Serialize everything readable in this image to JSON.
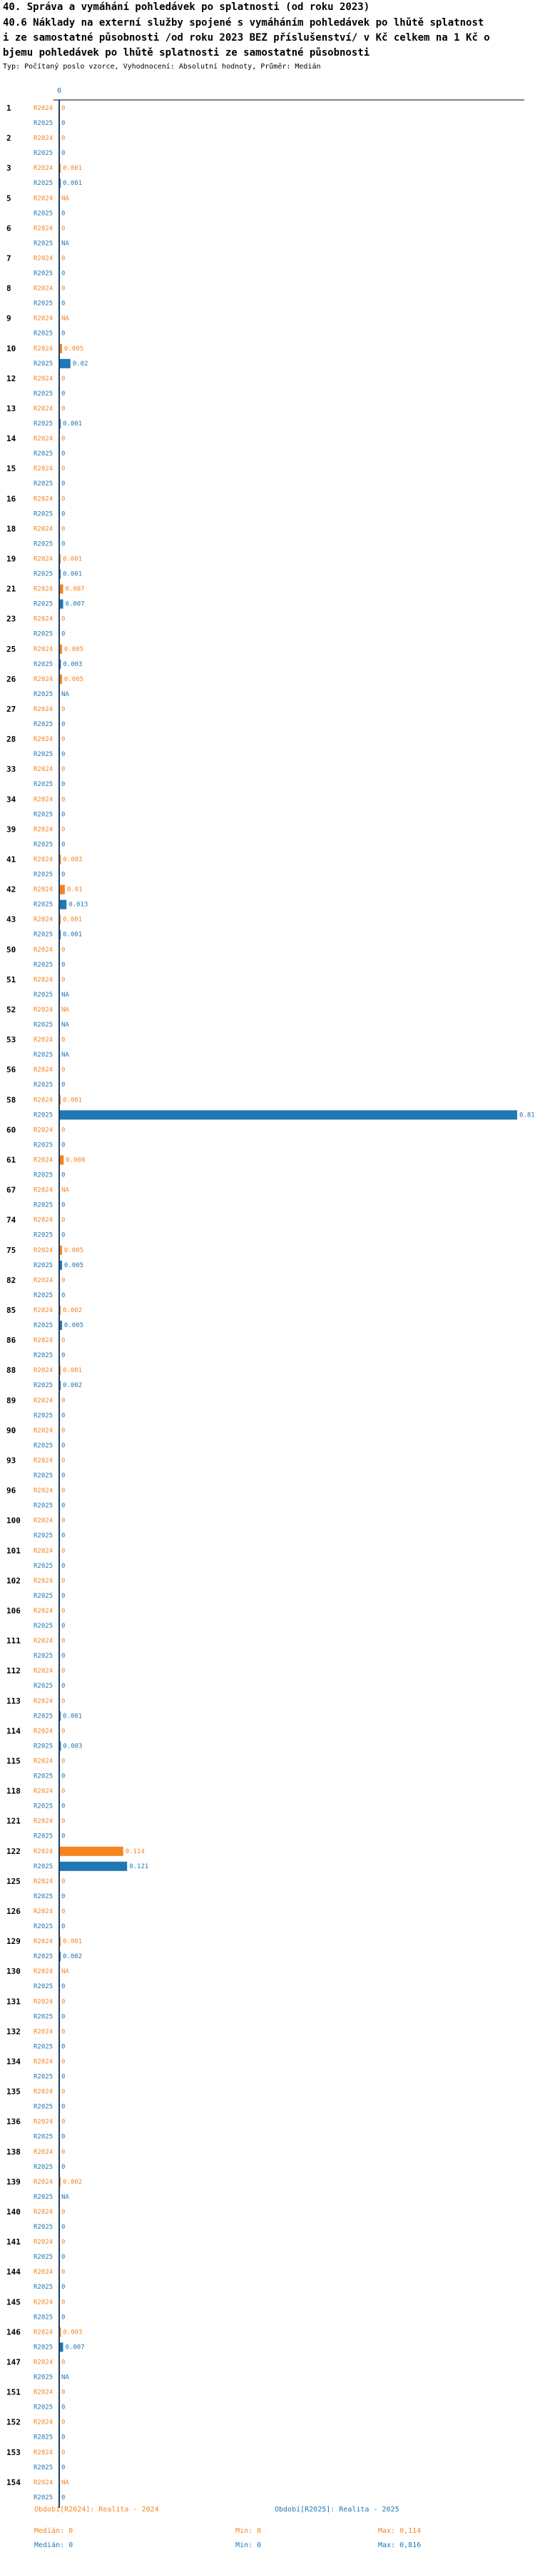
{
  "header": {
    "title": "40. Správa a vymáhání pohledávek po splatnosti (od roku 2023)",
    "subtitle_lines": [
      "40.6 Náklady na externí služby spojené s vymáháním  pohledávek po lhůtě splatnost",
      "i ze samostatné působnosti /od roku 2023 BEZ příslušenství/ v Kč celkem na 1 Kč o",
      "bjemu pohledávek po lhůtě splatnosti ze samostatné působnosti"
    ],
    "note": "Typ: Počítaný poslo vzorce, Vyhodnocení: Absolutní hodnoty, Průměr: Medián"
  },
  "chart_data": {
    "type": "bar",
    "orientation": "horizontal",
    "x_axis_tick_label": "0",
    "xlim": [
      0,
      0.816
    ],
    "grid": false,
    "colors": {
      "R2024": "#f5841f",
      "R2025": "#1f77b4"
    },
    "series_labels": [
      "R2024",
      "R2025"
    ],
    "categories": [
      "1",
      "2",
      "3",
      "5",
      "6",
      "7",
      "8",
      "9",
      "10",
      "12",
      "13",
      "14",
      "15",
      "16",
      "18",
      "19",
      "21",
      "23",
      "25",
      "26",
      "27",
      "28",
      "33",
      "34",
      "39",
      "41",
      "42",
      "43",
      "50",
      "51",
      "52",
      "53",
      "56",
      "58",
      "60",
      "61",
      "67",
      "74",
      "75",
      "82",
      "85",
      "86",
      "88",
      "89",
      "90",
      "93",
      "96",
      "100",
      "101",
      "102",
      "106",
      "111",
      "112",
      "113",
      "114",
      "115",
      "118",
      "121",
      "122",
      "125",
      "126",
      "129",
      "130",
      "131",
      "132",
      "134",
      "135",
      "136",
      "138",
      "139",
      "140",
      "141",
      "144",
      "145",
      "146",
      "147",
      "151",
      "152",
      "153",
      "154"
    ],
    "series": [
      {
        "name": "R2024",
        "values": [
          0,
          0,
          0.001,
          null,
          0,
          0,
          0,
          null,
          0.005,
          0,
          0,
          0,
          0,
          0,
          0,
          0.001,
          0.007,
          0,
          0.005,
          0.005,
          0,
          0,
          0,
          0,
          0,
          0.003,
          0.01,
          0.001,
          0,
          0,
          null,
          0,
          0,
          0.001,
          0,
          0.008,
          null,
          0,
          0.005,
          0,
          0.002,
          0,
          0.001,
          0,
          0,
          0,
          0,
          0,
          0,
          0,
          0,
          0,
          0,
          0,
          0,
          0,
          0,
          0,
          0.114,
          0,
          0,
          0.001,
          null,
          0,
          0,
          0,
          0,
          0,
          0,
          0.002,
          0,
          0,
          0,
          0,
          0.003,
          0,
          0,
          0,
          0,
          null
        ],
        "labels": [
          "0",
          "0",
          "0.001",
          "NA",
          "0",
          "0",
          "0",
          "NA",
          "0.005",
          "0",
          "0",
          "0",
          "0",
          "0",
          "0",
          "0.001",
          "0.007",
          "0",
          "0.005",
          "0.005",
          "0",
          "0",
          "0",
          "0",
          "0",
          "0.003",
          "0.01",
          "0.001",
          "0",
          "0",
          "NA",
          "0",
          "0",
          "0.001",
          "0",
          "0.008",
          "NA",
          "0",
          "0.005",
          "0",
          "0.002",
          "0",
          "0.001",
          "0",
          "0",
          "0",
          "0",
          "0",
          "0",
          "0",
          "0",
          "0",
          "0",
          "0",
          "0",
          "0",
          "0",
          "0",
          "0.114",
          "0",
          "0",
          "0.001",
          "NA",
          "0",
          "0",
          "0",
          "0",
          "0",
          "0",
          "0.002",
          "0",
          "0",
          "0",
          "0",
          "0.003",
          "0",
          "0",
          "0",
          "0",
          "NA"
        ]
      },
      {
        "name": "R2025",
        "values": [
          0,
          0,
          0.001,
          0,
          null,
          0,
          0,
          0,
          0.02,
          0,
          0.001,
          0,
          0,
          0,
          0,
          0.001,
          0.007,
          0,
          0.003,
          null,
          0,
          0,
          0,
          0,
          0,
          0,
          0.013,
          0.001,
          0,
          null,
          null,
          null,
          0,
          0.816,
          0,
          0,
          0,
          0,
          0.005,
          0,
          0.005,
          0,
          0.002,
          0,
          0,
          0,
          0,
          0,
          0,
          0,
          0,
          0,
          0,
          0.001,
          0.003,
          0,
          0,
          0,
          0.121,
          0,
          0,
          0.002,
          0,
          0,
          0,
          0,
          0,
          0,
          0,
          null,
          0,
          0,
          0,
          0,
          0.007,
          null,
          0,
          0,
          0,
          0
        ],
        "labels": [
          "0",
          "0",
          "0.001",
          "0",
          "NA",
          "0",
          "0",
          "0",
          "0.02",
          "0",
          "0.001",
          "0",
          "0",
          "0",
          "0",
          "0.001",
          "0.007",
          "0",
          "0.003",
          "NA",
          "0",
          "0",
          "0",
          "0",
          "0",
          "0",
          "0.013",
          "0.001",
          "0",
          "NA",
          "NA",
          "NA",
          "0",
          "0.816",
          "0",
          "0",
          "0",
          "0",
          "0.005",
          "0",
          "0.005",
          "0",
          "0.002",
          "0",
          "0",
          "0",
          "0",
          "0",
          "0",
          "0",
          "0",
          "0",
          "0",
          "0.001",
          "0.003",
          "0",
          "0",
          "0",
          "0.121",
          "0",
          "0",
          "0.002",
          "0",
          "0",
          "0",
          "0",
          "0",
          "0",
          "0",
          "NA",
          "0",
          "0",
          "0",
          "0",
          "0.007",
          "NA",
          "0",
          "0",
          "0",
          "0"
        ]
      }
    ],
    "legend": {
      "placement": "bottom",
      "series_titles": [
        "Období[R2024]: Realita - 2024",
        "Období[R2025]: Realita - 2025"
      ],
      "stats": [
        {
          "median": "Medián: 0",
          "min": "Min: 0",
          "max": "Max: 0,114"
        },
        {
          "median": "Medián: 0",
          "min": "Min: 0",
          "max": "Max: 0,816"
        }
      ]
    }
  }
}
